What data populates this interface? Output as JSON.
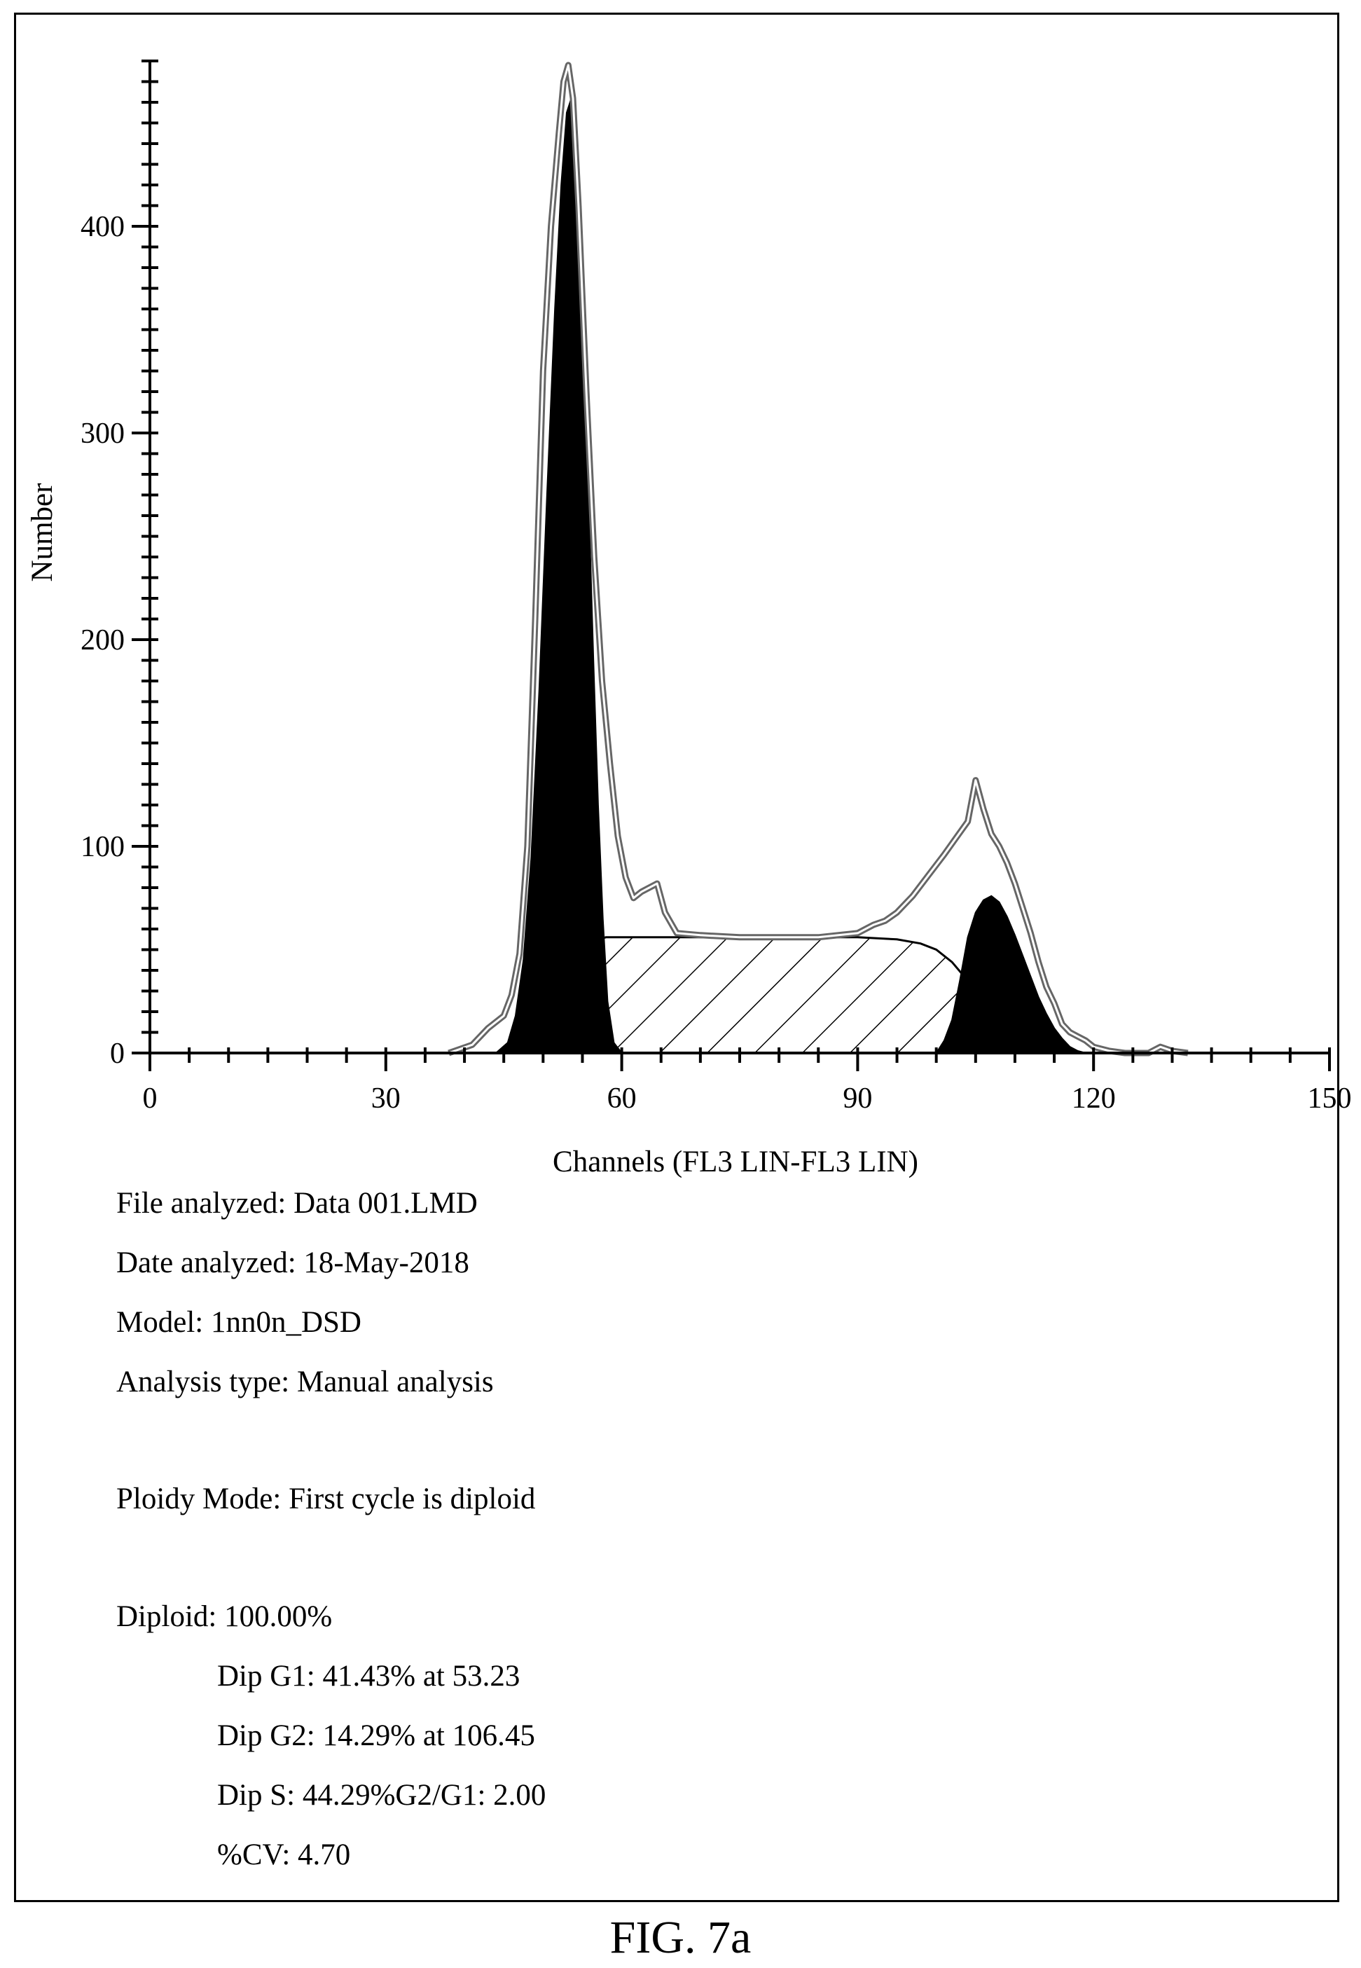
{
  "chart_data": {
    "type": "area",
    "xlabel": "Channels (FL3 LIN-FL3 LIN)",
    "ylabel": "Number",
    "xlim": [
      0,
      150
    ],
    "ylim": [
      0,
      480
    ],
    "x_ticks": [
      "0",
      "30",
      "60",
      "90",
      "120",
      "150"
    ],
    "y_ticks": [
      "0",
      "100",
      "200",
      "300",
      "400"
    ],
    "series": [
      {
        "style": "outline",
        "x": [
          38,
          41,
          43,
          45,
          46,
          47,
          48,
          49,
          50,
          51,
          52,
          52.6,
          53.2,
          53.8,
          54.5,
          55.5,
          56.5,
          57.5,
          58.5,
          59.5,
          60.5,
          61.5,
          62.5,
          63.5,
          64.5,
          65.5,
          67,
          70,
          75,
          80,
          85,
          90,
          92,
          93.5,
          95,
          97,
          99,
          101,
          102.5,
          104,
          105,
          106,
          107,
          108,
          109,
          110,
          111,
          112,
          113,
          114,
          115,
          116,
          117,
          118,
          119,
          120,
          121,
          122,
          124,
          127,
          128.5,
          130,
          132
        ],
        "y": [
          0,
          4,
          12,
          18,
          28,
          48,
          100,
          210,
          330,
          400,
          445,
          470,
          478,
          462,
          410,
          320,
          240,
          180,
          140,
          105,
          85,
          75,
          78,
          80,
          82,
          68,
          58,
          57,
          56,
          56,
          56,
          58,
          62,
          64,
          68,
          76,
          86,
          96,
          104,
          112,
          132,
          118,
          106,
          100,
          92,
          82,
          70,
          58,
          44,
          32,
          24,
          14,
          10,
          8,
          6,
          3,
          2,
          1,
          0,
          0,
          3,
          1,
          0
        ]
      },
      {
        "name": "Dip G1",
        "style": "solid",
        "x": [
          44,
          45.5,
          46.5,
          47.5,
          48.5,
          49.5,
          50.5,
          51.5,
          52.3,
          53,
          53.6,
          54.3,
          55,
          55.7,
          56.4,
          57,
          57.6,
          58.2,
          59,
          60
        ],
        "y": [
          0,
          5,
          18,
          45,
          95,
          175,
          270,
          360,
          420,
          455,
          462,
          440,
          370,
          280,
          190,
          120,
          65,
          25,
          5,
          0
        ]
      },
      {
        "name": "Dip S",
        "style": "hatched",
        "x": [
          47,
          48,
          49,
          50,
          51,
          52,
          53,
          54,
          55,
          56,
          57,
          58,
          60,
          70,
          80,
          90,
          95,
          98,
          100,
          102,
          104,
          106,
          108,
          110,
          112,
          114,
          116,
          118
        ],
        "y": [
          0,
          3,
          8,
          14,
          21,
          28,
          35,
          42,
          48,
          52,
          55,
          56,
          56,
          56,
          56,
          56,
          55,
          53,
          50,
          44,
          35,
          26,
          18,
          12,
          7,
          4,
          2,
          0
        ]
      },
      {
        "name": "Dip G2",
        "style": "solid",
        "x": [
          100,
          101,
          102,
          103,
          104,
          105,
          106,
          107,
          108,
          109,
          110,
          111,
          112,
          113,
          114,
          115,
          116,
          117,
          118,
          119
        ],
        "y": [
          0,
          6,
          16,
          35,
          56,
          68,
          74,
          76,
          73,
          66,
          57,
          47,
          37,
          27,
          19,
          12,
          7,
          3,
          1,
          0
        ]
      }
    ]
  },
  "report": {
    "file_analyzed": "File analyzed: Data 001.LMD",
    "date_analyzed": "Date analyzed: 18-May-2018",
    "model": "Model: 1nn0n_DSD",
    "analysis_type": "Analysis type: Manual analysis",
    "ploidy_mode": "Ploidy Mode: First cycle is diploid",
    "diploid": "Diploid: 100.00%",
    "dip_g1": "Dip G1: 41.43% at 53.23",
    "dip_g2": "Dip G2: 14.29% at 106.45",
    "dip_s": "Dip S: 44.29%G2/G1: 2.00",
    "cv": "%CV: 4.70"
  },
  "figure_label": "FIG. 7a"
}
